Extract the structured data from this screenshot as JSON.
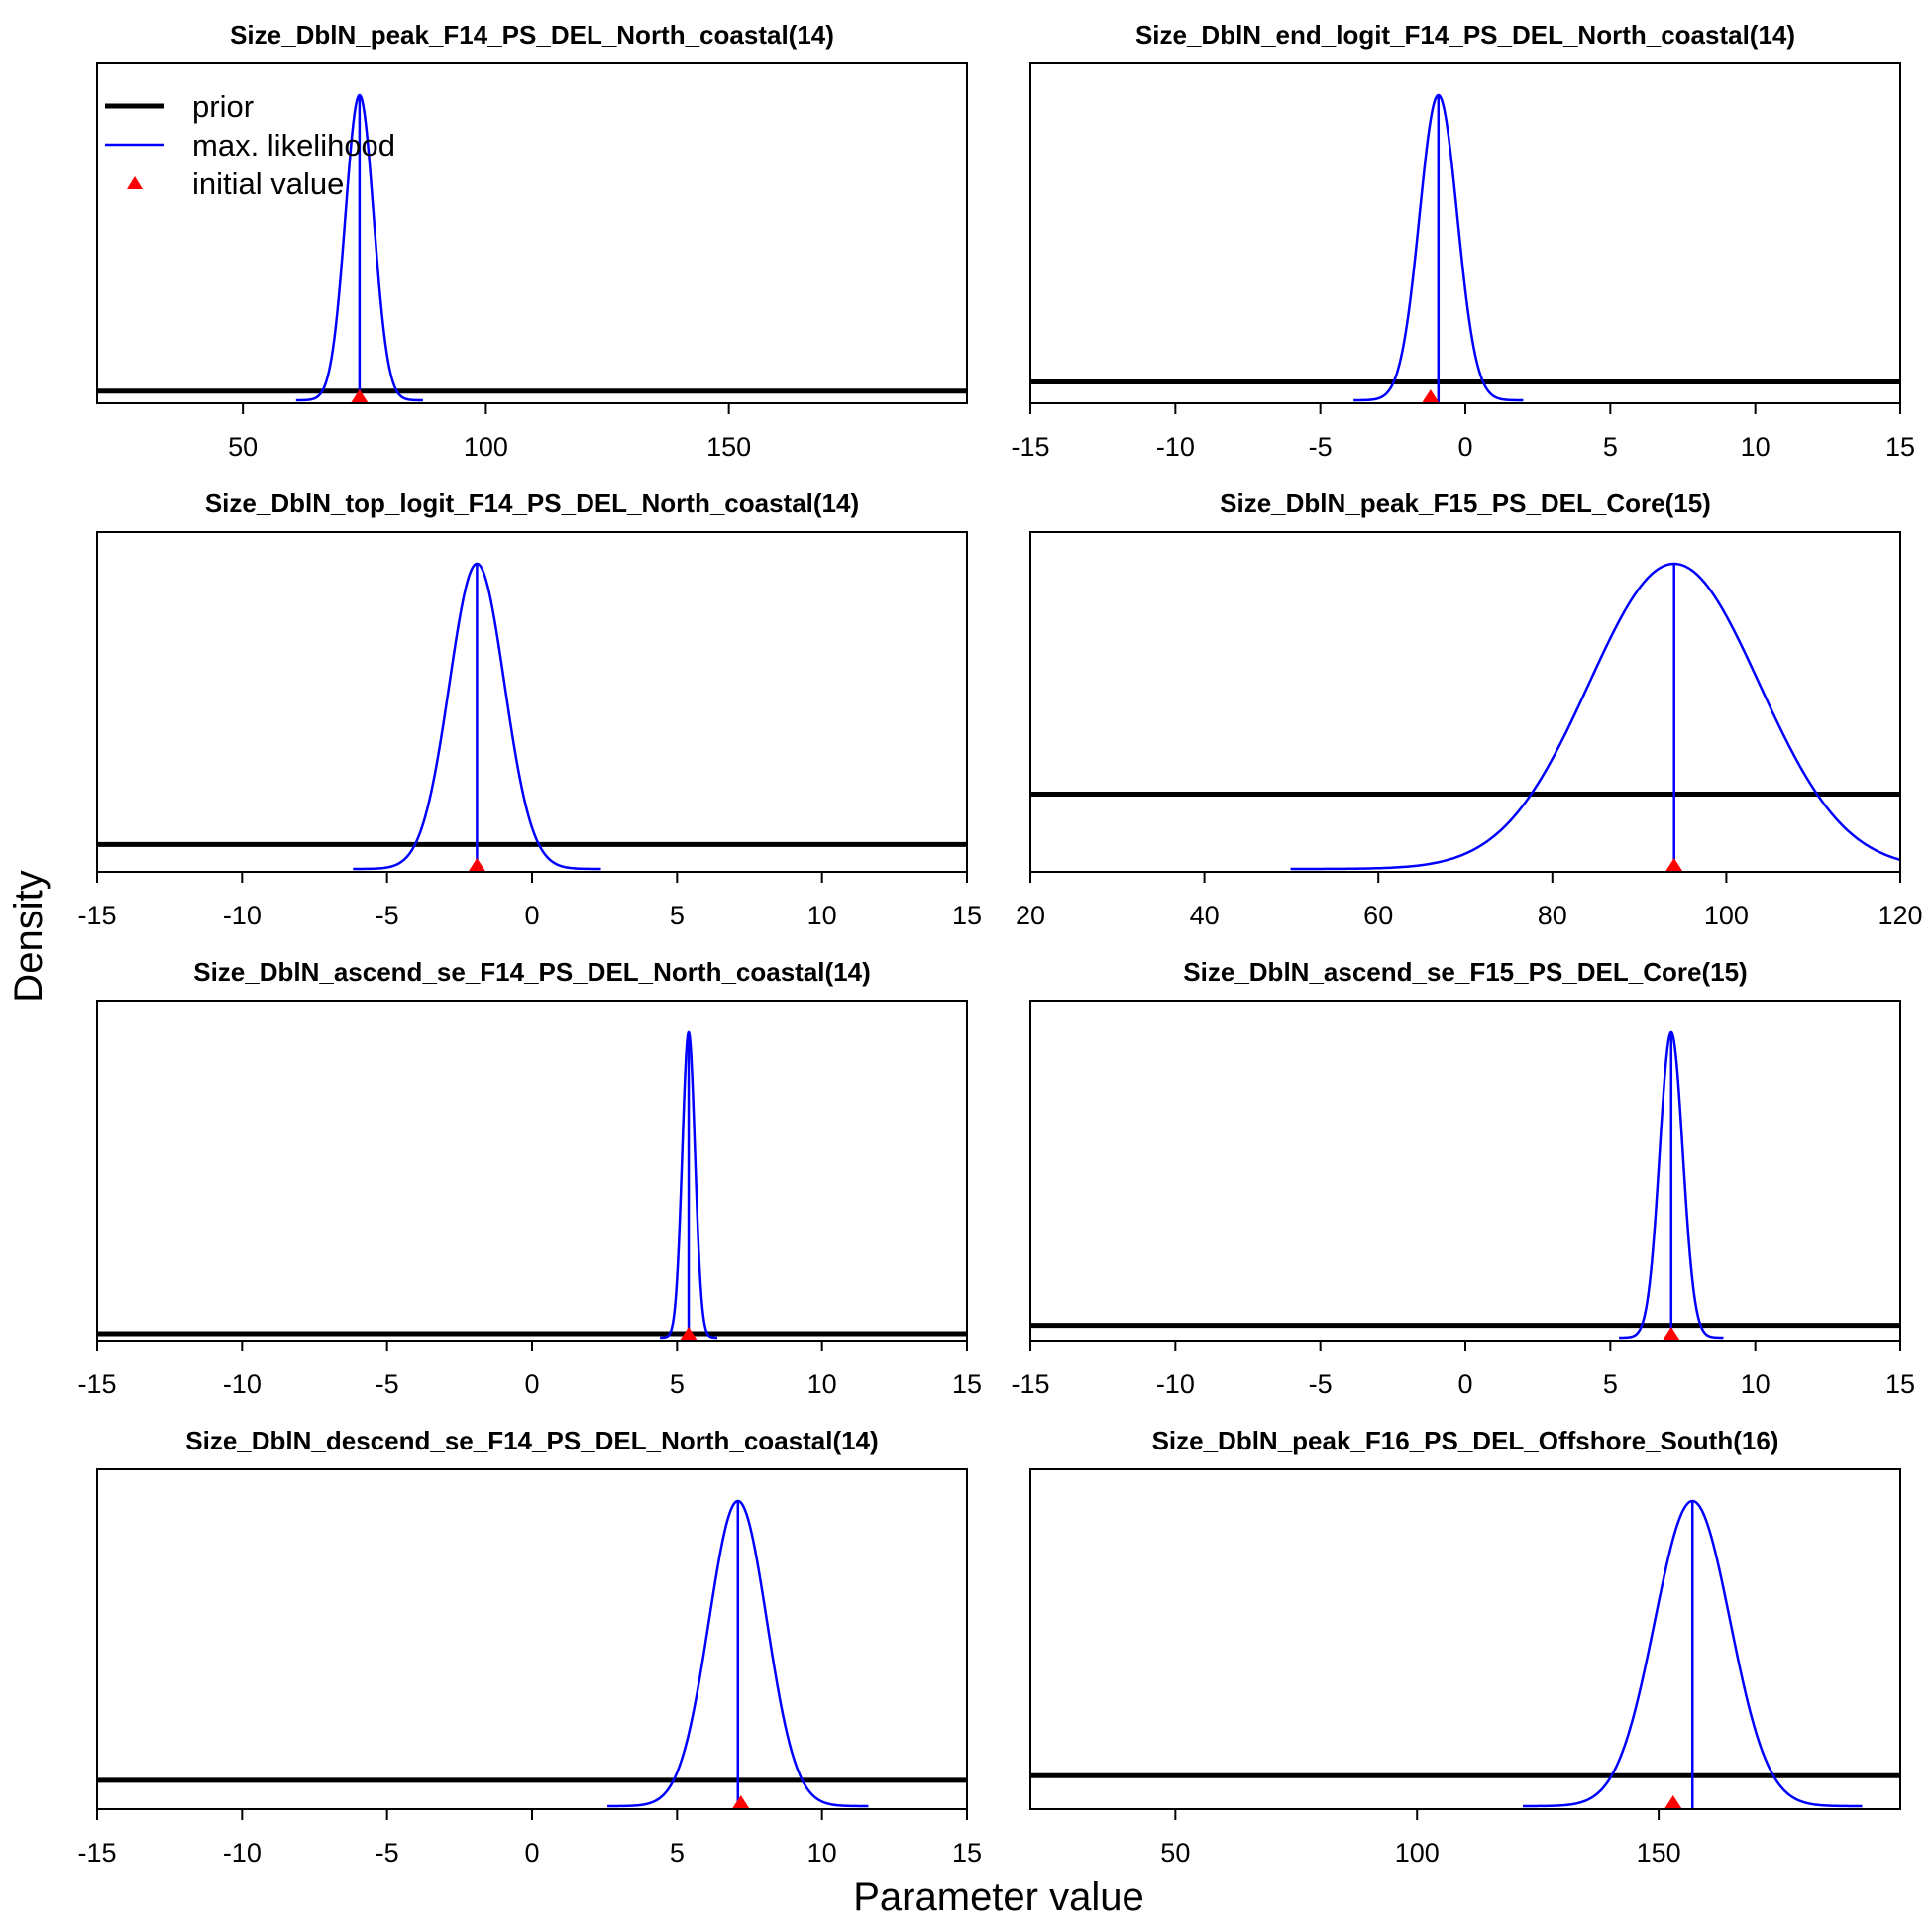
{
  "figure": {
    "ylabel": "Density",
    "xlabel": "Parameter value",
    "colors": {
      "prior": "#000000",
      "mle": "#0000ff",
      "initial": "#ff0000"
    },
    "legend": {
      "placement": "top-left of first panel",
      "items": [
        {
          "key": "prior",
          "label": "prior"
        },
        {
          "key": "mle",
          "label": "max. likelihood"
        },
        {
          "key": "initial",
          "label": "initial value"
        }
      ]
    }
  },
  "chart_data": [
    {
      "type": "line",
      "title": "Size_DblN_peak_F14_PS_DEL_North_coastal(14)",
      "xlim": [
        20,
        199
      ],
      "ticks": [
        50,
        100,
        150
      ],
      "tick_labels": [
        "50",
        "100",
        "150"
      ],
      "series": [
        {
          "kind": "mle",
          "mean": 74.0,
          "sd": 2.9
        },
        {
          "kind": "prior",
          "relative_density": 0.03
        }
      ],
      "initial_value": 74.0
    },
    {
      "type": "line",
      "title": "Size_DblN_end_logit_F14_PS_DEL_North_coastal(14)",
      "xlim": [
        -15,
        15
      ],
      "ticks": [
        -15,
        -10,
        -5,
        0,
        5,
        10,
        15
      ],
      "tick_labels": [
        "-15",
        "-10",
        "-5",
        "0",
        "5",
        "10",
        "15"
      ],
      "series": [
        {
          "kind": "mle",
          "mean": -0.93,
          "sd": 0.65
        },
        {
          "kind": "prior",
          "relative_density": 0.06
        }
      ],
      "initial_value": -1.2
    },
    {
      "type": "line",
      "title": "Size_DblN_top_logit_F14_PS_DEL_North_coastal(14)",
      "xlim": [
        -15,
        15
      ],
      "ticks": [
        -15,
        -10,
        -5,
        0,
        5,
        10,
        15
      ],
      "tick_labels": [
        "-15",
        "-10",
        "-5",
        "0",
        "5",
        "10",
        "15"
      ],
      "series": [
        {
          "kind": "mle",
          "mean": -1.9,
          "sd": 0.95
        },
        {
          "kind": "prior",
          "relative_density": 0.08
        }
      ],
      "initial_value": -1.9
    },
    {
      "type": "line",
      "title": "Size_DblN_peak_F15_PS_DEL_Core(15)",
      "xlim": [
        20,
        120
      ],
      "ticks": [
        20,
        40,
        60,
        80,
        100,
        120
      ],
      "tick_labels": [
        "20",
        "40",
        "60",
        "80",
        "100",
        "120"
      ],
      "series": [
        {
          "kind": "mle",
          "mean": 94.0,
          "sd": 9.8
        },
        {
          "kind": "prior",
          "relative_density": 0.245
        }
      ],
      "initial_value": 94.0
    },
    {
      "type": "line",
      "title": "Size_DblN_ascend_se_F14_PS_DEL_North_coastal(14)",
      "xlim": [
        -15,
        15
      ],
      "ticks": [
        -15,
        -10,
        -5,
        0,
        5,
        10,
        15
      ],
      "tick_labels": [
        "-15",
        "-10",
        "-5",
        "0",
        "5",
        "10",
        "15"
      ],
      "series": [
        {
          "kind": "mle",
          "mean": 5.4,
          "sd": 0.22
        },
        {
          "kind": "prior",
          "relative_density": 0.013
        }
      ],
      "initial_value": 5.4
    },
    {
      "type": "line",
      "title": "Size_DblN_ascend_se_F15_PS_DEL_Core(15)",
      "xlim": [
        -15,
        15
      ],
      "ticks": [
        -15,
        -10,
        -5,
        0,
        5,
        10,
        15
      ],
      "tick_labels": [
        "-15",
        "-10",
        "-5",
        "0",
        "5",
        "10",
        "15"
      ],
      "series": [
        {
          "kind": "mle",
          "mean": 7.1,
          "sd": 0.4
        },
        {
          "kind": "prior",
          "relative_density": 0.04
        }
      ],
      "initial_value": 7.1
    },
    {
      "type": "line",
      "title": "Size_DblN_descend_se_F14_PS_DEL_North_coastal(14)",
      "xlim": [
        -15,
        15
      ],
      "ticks": [
        -15,
        -10,
        -5,
        0,
        5,
        10,
        15
      ],
      "tick_labels": [
        "-15",
        "-10",
        "-5",
        "0",
        "5",
        "10",
        "15"
      ],
      "series": [
        {
          "kind": "mle",
          "mean": 7.1,
          "sd": 1.0
        },
        {
          "kind": "prior",
          "relative_density": 0.085
        }
      ],
      "initial_value": 7.2
    },
    {
      "type": "line",
      "title": "Size_DblN_peak_F16_PS_DEL_Offshore_South(16)",
      "xlim": [
        20,
        200
      ],
      "ticks": [
        50,
        100,
        150
      ],
      "tick_labels": [
        "50",
        "100",
        "150"
      ],
      "series": [
        {
          "kind": "mle",
          "mean": 157.0,
          "sd": 7.8
        },
        {
          "kind": "prior",
          "relative_density": 0.1
        }
      ],
      "initial_value": 153.0
    }
  ]
}
